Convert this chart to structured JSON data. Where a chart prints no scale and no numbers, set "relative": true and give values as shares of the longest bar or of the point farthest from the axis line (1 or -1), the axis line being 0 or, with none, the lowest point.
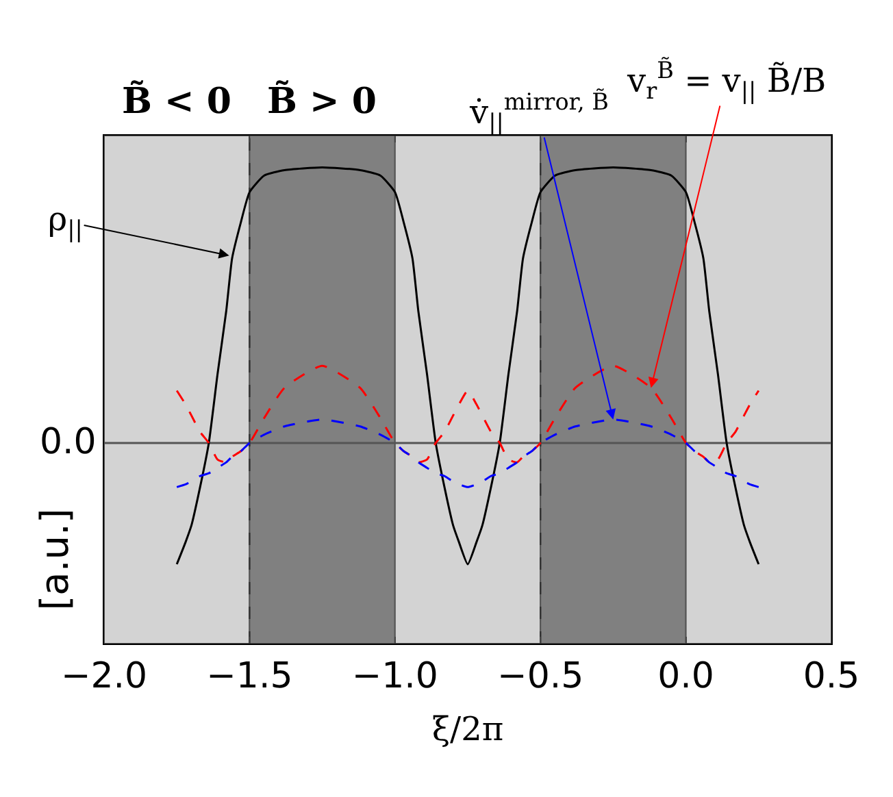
{
  "chart_data": {
    "type": "line",
    "relative": true,
    "xlabel": "ξ/2π",
    "ylabel": "[a.u.]",
    "xlim": [
      -2.0,
      0.5
    ],
    "xticks": [
      {
        "value": -2.0,
        "label": "−2.0"
      },
      {
        "value": -1.5,
        "label": "−1.5"
      },
      {
        "value": -1.0,
        "label": "−1.0"
      },
      {
        "value": -0.5,
        "label": "−0.5"
      },
      {
        "value": 0.0,
        "label": "0.0"
      },
      {
        "value": 0.5,
        "label": "0.5"
      }
    ],
    "tick_labels": "x",
    "grid": false,
    "x": [
      -1.75,
      -1.72,
      -1.7,
      -1.67,
      -1.64,
      -1.61,
      -1.58,
      -1.56,
      -1.53,
      -1.5,
      -1.45,
      -1.38,
      -1.25,
      -1.12,
      -1.05,
      -1.0,
      -0.97,
      -0.94,
      -0.92,
      -0.89,
      -0.86,
      -0.83,
      -0.8,
      -0.78,
      -0.75,
      -0.72,
      -0.7,
      -0.67,
      -0.64,
      -0.61,
      -0.58,
      -0.56,
      -0.53,
      -0.5,
      -0.45,
      -0.38,
      -0.25,
      -0.12,
      -0.05,
      0.0,
      0.03,
      0.06,
      0.08,
      0.11,
      0.14,
      0.17,
      0.2,
      0.22,
      0.25
    ],
    "series": [
      {
        "color": "#000000",
        "line_style": "solid",
        "values": [
          -0.44,
          -0.36,
          -0.3,
          -0.16,
          0,
          0.25,
          0.48,
          0.67,
          0.8,
          0.91,
          0.97,
          0.99,
          1.0,
          0.99,
          0.97,
          0.91,
          0.8,
          0.67,
          0.48,
          0.25,
          0,
          -0.16,
          -0.3,
          -0.36,
          -0.44,
          -0.36,
          -0.3,
          -0.16,
          0,
          0.25,
          0.48,
          0.67,
          0.8,
          0.91,
          0.97,
          0.99,
          1.0,
          0.99,
          0.97,
          0.91,
          0.8,
          0.67,
          0.48,
          0.25,
          0,
          -0.16,
          -0.3,
          -0.36,
          -0.44
        ]
      },
      {
        "color": "#ff0000",
        "line_style": "dashed",
        "values": [
          0.19,
          0.14,
          0.1,
          0.04,
          0,
          -0.06,
          -0.07,
          -0.05,
          -0.03,
          0,
          0.09,
          0.2,
          0.28,
          0.2,
          0.09,
          0,
          -0.03,
          -0.05,
          -0.07,
          -0.06,
          0,
          0.04,
          0.1,
          0.14,
          0.19,
          0.14,
          0.1,
          0.04,
          0,
          -0.06,
          -0.07,
          -0.05,
          -0.03,
          0,
          0.09,
          0.2,
          0.28,
          0.2,
          0.09,
          0,
          -0.03,
          -0.05,
          -0.07,
          -0.06,
          0,
          0.04,
          0.1,
          0.14,
          0.19
        ]
      },
      {
        "color": "#0000ff",
        "line_style": "dashed",
        "values": [
          -0.16,
          -0.15,
          -0.14,
          -0.12,
          -0.11,
          -0.09,
          -0.07,
          -0.05,
          -0.03,
          0,
          0.03,
          0.06,
          0.085,
          0.06,
          0.03,
          0,
          -0.03,
          -0.05,
          -0.07,
          -0.09,
          -0.11,
          -0.12,
          -0.14,
          -0.15,
          -0.16,
          -0.15,
          -0.14,
          -0.12,
          -0.11,
          -0.09,
          -0.07,
          -0.05,
          -0.03,
          0,
          0.03,
          0.06,
          0.085,
          0.06,
          0.03,
          0,
          -0.03,
          -0.05,
          -0.07,
          -0.09,
          -0.11,
          -0.12,
          -0.14,
          -0.15,
          -0.16
        ]
      }
    ],
    "bands": [
      {
        "axis": "x",
        "from": -2.0,
        "to": -1.5,
        "color": "#d3d3d3",
        "label": "B̃ < 0"
      },
      {
        "axis": "x",
        "from": -1.5,
        "to": -1.0,
        "color": "#808080",
        "label": "B̃ > 0"
      },
      {
        "axis": "x",
        "from": -1.0,
        "to": -0.5,
        "color": "#d3d3d3"
      },
      {
        "axis": "x",
        "from": -0.5,
        "to": 0.0,
        "color": "#808080"
      },
      {
        "axis": "x",
        "from": 0.0,
        "to": 0.5,
        "color": "#d3d3d3"
      }
    ],
    "ref_lines": [
      {
        "axis": "y",
        "value": 0,
        "label": "0.0",
        "color": "#555555",
        "line_style": "solid"
      },
      {
        "axis": "x",
        "value": -1.5,
        "color": "#333333",
        "line_style": "dashed"
      },
      {
        "axis": "x",
        "value": -0.5,
        "color": "#333333",
        "line_style": "dashed"
      }
    ],
    "annotations": [
      {
        "text": "ρ$_{||}$",
        "x": -1.57,
        "y": 0.68
      },
      {
        "text": "v̇$_{||}$$^{mirror, B̃}$",
        "x": -0.25,
        "y": 0.085
      },
      {
        "text": "v$_{r}$$^{B̃}$ = v$_{||}$ B̃/B",
        "x": -0.12,
        "y": 0.2
      }
    ]
  }
}
